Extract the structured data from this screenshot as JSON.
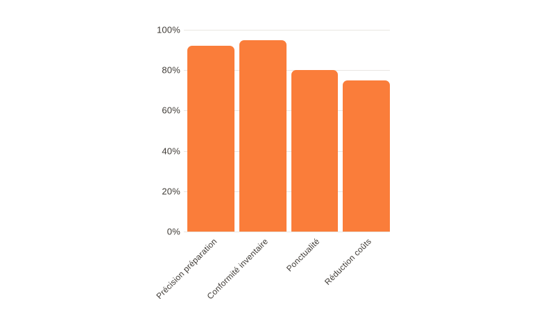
{
  "chart_data": {
    "type": "bar",
    "title": "",
    "xlabel": "",
    "ylabel": "",
    "categories": [
      "Précision préparation",
      "Conformité inventaire",
      "Ponctualité",
      "Réduction coûts"
    ],
    "values": [
      92,
      95,
      80,
      75
    ],
    "value_suffix": "%",
    "ylim": [
      0,
      100
    ],
    "yticks": [
      {
        "value": 0,
        "label": "0%"
      },
      {
        "value": 20,
        "label": "20%"
      },
      {
        "value": 40,
        "label": "40%"
      },
      {
        "value": 60,
        "label": "60%"
      },
      {
        "value": 80,
        "label": "80%"
      },
      {
        "value": 100,
        "label": "100%"
      }
    ],
    "grid": true,
    "legend_position": "none",
    "colors": {
      "bar": "#fa7d3a",
      "grid": "#e9e6e2",
      "text": "#3f3b36",
      "background": "#ffffff"
    }
  }
}
